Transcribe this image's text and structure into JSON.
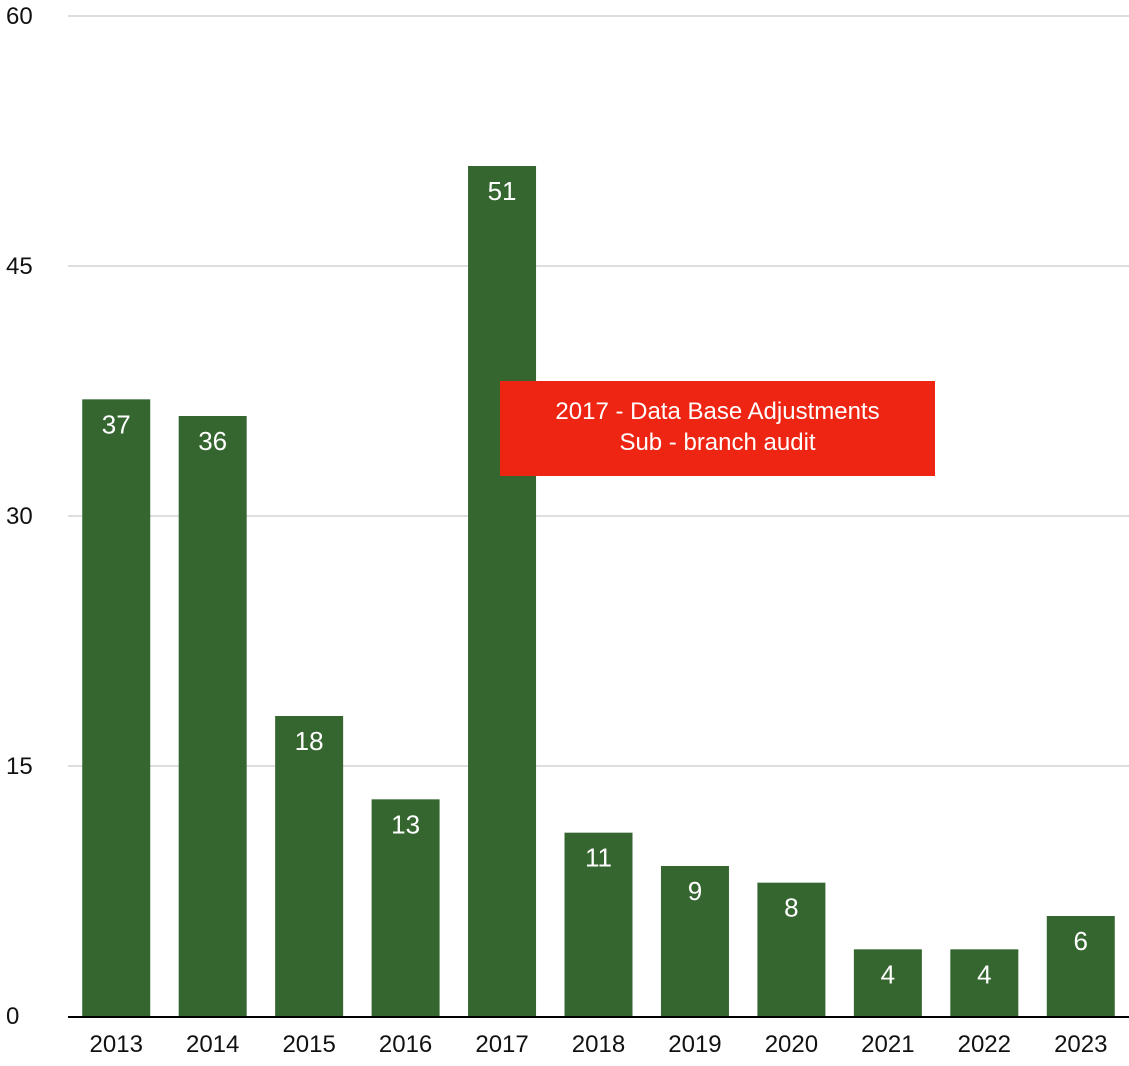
{
  "chart_data": {
    "type": "bar",
    "categories": [
      "2013",
      "2014",
      "2015",
      "2016",
      "2017",
      "2018",
      "2019",
      "2020",
      "2021",
      "2022",
      "2023"
    ],
    "values": [
      37,
      36,
      18,
      13,
      51,
      11,
      9,
      8,
      4,
      4,
      6
    ],
    "title": "",
    "xlabel": "",
    "ylabel": "",
    "ylim": [
      0,
      60
    ],
    "yticks": [
      0,
      15,
      30,
      45,
      60
    ],
    "grid": true,
    "legend": "none",
    "data_labels": true,
    "colors": {
      "bar": "#356630",
      "grid": "#bdbdbd",
      "axis": "#000000",
      "annotation_bg": "#ee2512",
      "annotation_text": "#ffffff"
    },
    "annotation": {
      "line1": "2017 - Data Base Adjustments",
      "line2": "Sub - branch audit"
    }
  }
}
